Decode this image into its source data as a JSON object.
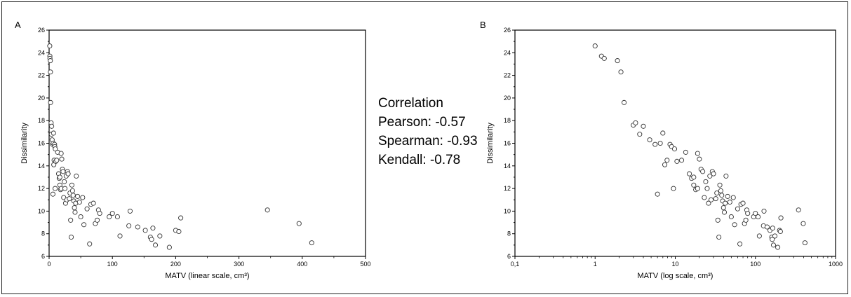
{
  "panels": {
    "a_letter": "A",
    "b_letter": "B"
  },
  "correlation": {
    "title": "Correlation",
    "pearson": "Pearson: -0.57",
    "spearman": "Spearman: -0.93",
    "kendall": "Kendall: -0.78"
  },
  "chart_data": [
    {
      "type": "scatter",
      "panel": "A",
      "xlabel": "MATV (linear scale, cm³)",
      "ylabel": "Dissimilarity",
      "xscale": "linear",
      "xlim": [
        0,
        500
      ],
      "ylim": [
        6,
        26
      ],
      "xticks": [
        0,
        100,
        200,
        300,
        400,
        500
      ],
      "yticks": [
        6,
        8,
        10,
        12,
        14,
        16,
        18,
        20,
        22,
        24,
        26
      ],
      "grid": false,
      "marker": "open-circle",
      "points": [
        [
          1.0,
          24.6
        ],
        [
          1.2,
          23.7
        ],
        [
          1.3,
          23.5
        ],
        [
          1.9,
          23.3
        ],
        [
          2.1,
          22.3
        ],
        [
          2.3,
          19.6
        ],
        [
          3.0,
          17.6
        ],
        [
          3.2,
          17.8
        ],
        [
          3.6,
          16.8
        ],
        [
          4.0,
          17.5
        ],
        [
          4.8,
          16.3
        ],
        [
          5.6,
          15.9
        ],
        [
          6.0,
          11.5
        ],
        [
          6.5,
          16.0
        ],
        [
          7.0,
          16.9
        ],
        [
          7.4,
          14.1
        ],
        [
          7.9,
          14.5
        ],
        [
          8.6,
          15.9
        ],
        [
          9.0,
          15.7
        ],
        [
          9.5,
          12.0
        ],
        [
          9.8,
          15.5
        ],
        [
          10.5,
          14.4
        ],
        [
          12.0,
          14.5
        ],
        [
          13.5,
          15.2
        ],
        [
          15,
          13.3
        ],
        [
          16,
          12.9
        ],
        [
          17,
          13.0
        ],
        [
          17,
          12.3
        ],
        [
          18,
          11.9
        ],
        [
          19,
          12.0
        ],
        [
          19,
          15.1
        ],
        [
          20,
          14.6
        ],
        [
          21,
          13.7
        ],
        [
          22,
          13.5
        ],
        [
          23,
          11.2
        ],
        [
          24,
          12.6
        ],
        [
          25,
          12.0
        ],
        [
          26,
          10.7
        ],
        [
          27,
          13.1
        ],
        [
          28,
          11.0
        ],
        [
          29,
          13.5
        ],
        [
          30,
          13.3
        ],
        [
          32,
          11.1
        ],
        [
          33,
          11.6
        ],
        [
          34,
          9.2
        ],
        [
          35,
          7.7
        ],
        [
          36,
          12.3
        ],
        [
          37,
          11.8
        ],
        [
          38,
          11.4
        ],
        [
          39,
          10.9
        ],
        [
          40,
          10.3
        ],
        [
          41,
          9.9
        ],
        [
          42,
          10.7
        ],
        [
          43,
          13.1
        ],
        [
          45,
          11.3
        ],
        [
          48,
          10.8
        ],
        [
          50,
          9.5
        ],
        [
          53,
          11.2
        ],
        [
          55,
          8.8
        ],
        [
          60,
          10.2
        ],
        [
          64,
          7.1
        ],
        [
          66,
          10.6
        ],
        [
          70,
          10.7
        ],
        [
          73,
          8.9
        ],
        [
          76,
          9.2
        ],
        [
          78,
          10.1
        ],
        [
          80,
          9.8
        ],
        [
          95,
          9.5
        ],
        [
          100,
          9.8
        ],
        [
          108,
          9.5
        ],
        [
          112,
          7.8
        ],
        [
          126,
          8.7
        ],
        [
          128,
          10.0
        ],
        [
          140,
          8.6
        ],
        [
          152,
          8.3
        ],
        [
          160,
          7.7
        ],
        [
          162,
          7.5
        ],
        [
          164,
          8.5
        ],
        [
          168,
          7.0
        ],
        [
          175,
          7.8
        ],
        [
          190,
          6.8
        ],
        [
          200,
          8.3
        ],
        [
          205,
          8.2
        ],
        [
          208,
          9.4
        ],
        [
          345,
          10.1
        ],
        [
          395,
          8.9
        ],
        [
          415,
          7.2
        ]
      ]
    },
    {
      "type": "scatter",
      "panel": "B",
      "xlabel": "MATV (log scale, cm³)",
      "ylabel": "Dissimilarity",
      "xscale": "log",
      "xlim": [
        0.1,
        1000
      ],
      "ylim": [
        6,
        26
      ],
      "xticks": [
        0.1,
        1,
        10,
        100,
        1000
      ],
      "xtick_labels": [
        "0,1",
        "1",
        "10",
        "100",
        "1000"
      ],
      "yticks": [
        6,
        8,
        10,
        12,
        14,
        16,
        18,
        20,
        22,
        24,
        26
      ],
      "grid": false,
      "marker": "open-circle",
      "points": [
        [
          1.0,
          24.6
        ],
        [
          1.2,
          23.7
        ],
        [
          1.3,
          23.5
        ],
        [
          1.9,
          23.3
        ],
        [
          2.1,
          22.3
        ],
        [
          2.3,
          19.6
        ],
        [
          3.0,
          17.6
        ],
        [
          3.2,
          17.8
        ],
        [
          3.6,
          16.8
        ],
        [
          4.0,
          17.5
        ],
        [
          4.8,
          16.3
        ],
        [
          5.6,
          15.9
        ],
        [
          6.0,
          11.5
        ],
        [
          6.5,
          16.0
        ],
        [
          7.0,
          16.9
        ],
        [
          7.4,
          14.1
        ],
        [
          7.9,
          14.5
        ],
        [
          8.6,
          15.9
        ],
        [
          9.0,
          15.7
        ],
        [
          9.5,
          12.0
        ],
        [
          9.8,
          15.5
        ],
        [
          10.5,
          14.4
        ],
        [
          12.0,
          14.5
        ],
        [
          13.5,
          15.2
        ],
        [
          15,
          13.3
        ],
        [
          16,
          12.9
        ],
        [
          17,
          13.0
        ],
        [
          17,
          12.3
        ],
        [
          18,
          11.9
        ],
        [
          19,
          12.0
        ],
        [
          19,
          15.1
        ],
        [
          20,
          14.6
        ],
        [
          21,
          13.7
        ],
        [
          22,
          13.5
        ],
        [
          23,
          11.2
        ],
        [
          24,
          12.6
        ],
        [
          25,
          12.0
        ],
        [
          26,
          10.7
        ],
        [
          27,
          13.1
        ],
        [
          28,
          11.0
        ],
        [
          29,
          13.5
        ],
        [
          30,
          13.3
        ],
        [
          32,
          11.1
        ],
        [
          33,
          11.6
        ],
        [
          34,
          9.2
        ],
        [
          35,
          7.7
        ],
        [
          36,
          12.3
        ],
        [
          37,
          11.8
        ],
        [
          38,
          11.4
        ],
        [
          39,
          10.9
        ],
        [
          40,
          10.3
        ],
        [
          41,
          9.9
        ],
        [
          42,
          10.7
        ],
        [
          43,
          13.1
        ],
        [
          45,
          11.3
        ],
        [
          48,
          10.8
        ],
        [
          50,
          9.5
        ],
        [
          53,
          11.2
        ],
        [
          55,
          8.8
        ],
        [
          60,
          10.2
        ],
        [
          64,
          7.1
        ],
        [
          66,
          10.6
        ],
        [
          70,
          10.7
        ],
        [
          73,
          8.9
        ],
        [
          76,
          9.2
        ],
        [
          78,
          10.1
        ],
        [
          80,
          9.8
        ],
        [
          95,
          9.5
        ],
        [
          100,
          9.8
        ],
        [
          108,
          9.5
        ],
        [
          112,
          7.8
        ],
        [
          126,
          8.7
        ],
        [
          128,
          10.0
        ],
        [
          140,
          8.6
        ],
        [
          152,
          8.3
        ],
        [
          160,
          7.7
        ],
        [
          162,
          7.5
        ],
        [
          164,
          8.5
        ],
        [
          168,
          7.0
        ],
        [
          175,
          7.8
        ],
        [
          190,
          6.8
        ],
        [
          200,
          8.3
        ],
        [
          205,
          8.2
        ],
        [
          208,
          9.4
        ],
        [
          345,
          10.1
        ],
        [
          395,
          8.9
        ],
        [
          415,
          7.2
        ]
      ]
    }
  ]
}
